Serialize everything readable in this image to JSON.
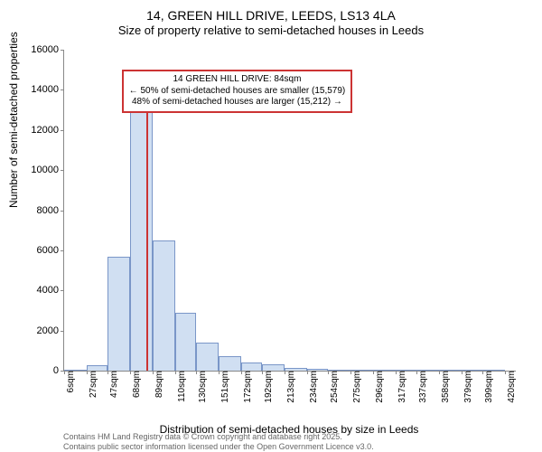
{
  "title_line1": "14, GREEN HILL DRIVE, LEEDS, LS13 4LA",
  "title_line2": "Size of property relative to semi-detached houses in Leeds",
  "ylabel": "Number of semi-detached properties",
  "xlabel": "Distribution of semi-detached houses by size in Leeds",
  "attribution_line1": "Contains HM Land Registry data © Crown copyright and database right 2025.",
  "attribution_line2": "Contains public sector information licensed under the Open Government Licence v3.0.",
  "chart": {
    "type": "histogram",
    "ylim": [
      0,
      16000
    ],
    "ytick_step": 2000,
    "yticks": [
      0,
      2000,
      4000,
      6000,
      8000,
      10000,
      12000,
      14000,
      16000
    ],
    "xlim": [
      6,
      430
    ],
    "xticks": [
      6,
      27,
      47,
      68,
      89,
      110,
      130,
      151,
      172,
      192,
      213,
      234,
      254,
      275,
      296,
      317,
      337,
      358,
      379,
      399,
      420
    ],
    "xtick_suffix": "sqm",
    "bar_color": "#d0dff2",
    "bar_border": "#7a96c8",
    "marker_color": "#cc3333",
    "background_color": "#ffffff",
    "axis_color": "#888888",
    "bars": [
      {
        "x0": 6,
        "x1": 27,
        "value": 20
      },
      {
        "x0": 27,
        "x1": 47,
        "value": 280
      },
      {
        "x0": 47,
        "x1": 68,
        "value": 5700
      },
      {
        "x0": 68,
        "x1": 89,
        "value": 13100
      },
      {
        "x0": 89,
        "x1": 110,
        "value": 6500
      },
      {
        "x0": 110,
        "x1": 130,
        "value": 2900
      },
      {
        "x0": 130,
        "x1": 151,
        "value": 1400
      },
      {
        "x0": 151,
        "x1": 172,
        "value": 700
      },
      {
        "x0": 172,
        "x1": 192,
        "value": 400
      },
      {
        "x0": 192,
        "x1": 213,
        "value": 300
      },
      {
        "x0": 213,
        "x1": 234,
        "value": 150
      },
      {
        "x0": 234,
        "x1": 254,
        "value": 100
      },
      {
        "x0": 254,
        "x1": 275,
        "value": 60
      },
      {
        "x0": 275,
        "x1": 296,
        "value": 30
      },
      {
        "x0": 296,
        "x1": 317,
        "value": 15
      },
      {
        "x0": 317,
        "x1": 337,
        "value": 10
      },
      {
        "x0": 337,
        "x1": 358,
        "value": 5
      },
      {
        "x0": 358,
        "x1": 379,
        "value": 5
      },
      {
        "x0": 379,
        "x1": 399,
        "value": 3
      },
      {
        "x0": 399,
        "x1": 420,
        "value": 3
      }
    ],
    "marker_x": 84,
    "marker_height": 14700,
    "annotation": {
      "line1": "14 GREEN HILL DRIVE: 84sqm",
      "line2": "← 50% of semi-detached houses are smaller (15,579)",
      "line3": "48% of semi-detached houses are larger (15,212) →",
      "box_color": "#cc3333",
      "top_value": 15000,
      "left_x": 60
    }
  }
}
